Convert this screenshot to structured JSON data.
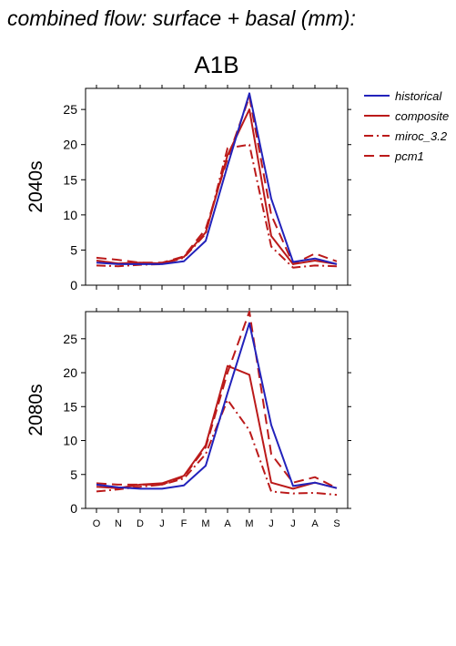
{
  "page": {
    "title": "combined flow: surface + basal (mm):",
    "scenario": "A1B"
  },
  "colors": {
    "historical": "#2222bb",
    "composite": "#bb1a1a",
    "miroc_3.2": "#bb1a1a",
    "pcm1": "#bb1a1a"
  },
  "chart_data": [
    {
      "type": "line",
      "row_label": "2040s",
      "x": [
        "O",
        "N",
        "D",
        "J",
        "F",
        "M",
        "A",
        "M",
        "J",
        "J",
        "A",
        "S"
      ],
      "ylim": [
        0,
        28
      ],
      "yticks": [
        0,
        5,
        10,
        15,
        20,
        25
      ],
      "series": [
        {
          "name": "historical",
          "style": "solid",
          "color": "#2222bb",
          "values": [
            3.2,
            3.0,
            3.0,
            3.0,
            3.4,
            6.3,
            17.0,
            27.3,
            12.3,
            3.3,
            3.8,
            3.0
          ]
        },
        {
          "name": "composite",
          "style": "solid",
          "color": "#bb1a1a",
          "values": [
            3.5,
            3.1,
            3.2,
            3.1,
            4.0,
            7.5,
            18.5,
            25.0,
            7.0,
            3.0,
            3.5,
            3.0
          ]
        },
        {
          "name": "miroc_3.2",
          "style": "dashdot",
          "color": "#bb1a1a",
          "values": [
            2.8,
            2.7,
            2.9,
            3.0,
            3.9,
            7.3,
            19.5,
            20.0,
            5.5,
            2.5,
            2.8,
            2.7
          ]
        },
        {
          "name": "pcm1",
          "style": "dashed",
          "color": "#bb1a1a",
          "values": [
            3.9,
            3.6,
            3.2,
            3.2,
            4.1,
            8.0,
            18.0,
            26.8,
            10.0,
            3.0,
            4.5,
            3.4
          ]
        }
      ]
    },
    {
      "type": "line",
      "row_label": "2080s",
      "x": [
        "O",
        "N",
        "D",
        "J",
        "F",
        "M",
        "A",
        "M",
        "J",
        "J",
        "A",
        "S"
      ],
      "ylim": [
        0,
        29
      ],
      "yticks": [
        0,
        5,
        10,
        15,
        20,
        25
      ],
      "xtick_labels_shown": true,
      "series": [
        {
          "name": "historical",
          "style": "solid",
          "color": "#2222bb",
          "values": [
            3.5,
            3.1,
            2.9,
            2.9,
            3.4,
            6.3,
            17.0,
            27.3,
            12.3,
            3.3,
            3.8,
            3.0
          ]
        },
        {
          "name": "composite",
          "style": "solid",
          "color": "#bb1a1a",
          "values": [
            3.2,
            3.0,
            3.5,
            3.7,
            4.8,
            9.3,
            21.0,
            19.7,
            3.8,
            2.9,
            3.8,
            3.0
          ]
        },
        {
          "name": "miroc_3.2",
          "style": "dashdot",
          "color": "#bb1a1a",
          "values": [
            2.5,
            2.8,
            3.2,
            3.5,
            4.4,
            8.0,
            16.0,
            11.5,
            2.5,
            2.2,
            2.3,
            2.0
          ]
        },
        {
          "name": "pcm1",
          "style": "dashed",
          "color": "#bb1a1a",
          "values": [
            3.7,
            3.5,
            3.5,
            3.5,
            4.7,
            9.0,
            20.0,
            29.0,
            8.0,
            3.8,
            4.6,
            3.0
          ]
        }
      ]
    }
  ],
  "legend": {
    "placement": "right",
    "entries": [
      "historical",
      "composite",
      "miroc_3.2",
      "pcm1"
    ]
  }
}
